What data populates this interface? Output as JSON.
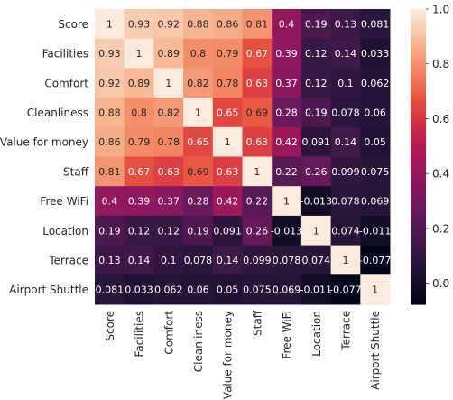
{
  "chart_data": {
    "type": "heatmap",
    "title": "",
    "xlabel": "",
    "ylabel": "",
    "row_labels": [
      "Score",
      "Facilities",
      "Comfort",
      "Cleanliness",
      "Value for money",
      "Staff",
      "Free WiFi",
      "Location",
      "Terrace",
      "Airport Shuttle"
    ],
    "col_labels": [
      "Score",
      "Facilities",
      "Comfort",
      "Cleanliness",
      "Value for money",
      "Staff",
      "Free WiFi",
      "Location",
      "Terrace",
      "Airport Shuttle"
    ],
    "values": [
      [
        1,
        0.93,
        0.92,
        0.88,
        0.86,
        0.81,
        0.4,
        0.19,
        0.13,
        0.081
      ],
      [
        0.93,
        1,
        0.89,
        0.8,
        0.79,
        0.67,
        0.39,
        0.12,
        0.14,
        0.033
      ],
      [
        0.92,
        0.89,
        1,
        0.82,
        0.78,
        0.63,
        0.37,
        0.12,
        0.1,
        0.062
      ],
      [
        0.88,
        0.8,
        0.82,
        1,
        0.65,
        0.69,
        0.28,
        0.19,
        0.078,
        0.06
      ],
      [
        0.86,
        0.79,
        0.78,
        0.65,
        1,
        0.63,
        0.42,
        0.091,
        0.14,
        0.05
      ],
      [
        0.81,
        0.67,
        0.63,
        0.69,
        0.63,
        1,
        0.22,
        0.26,
        0.099,
        0.075
      ],
      [
        0.4,
        0.39,
        0.37,
        0.28,
        0.42,
        0.22,
        1,
        -0.013,
        0.078,
        0.069
      ],
      [
        0.19,
        0.12,
        0.12,
        0.19,
        0.091,
        0.26,
        -0.013,
        1,
        0.074,
        -0.011
      ],
      [
        0.13,
        0.14,
        0.1,
        0.078,
        0.14,
        0.099,
        0.078,
        0.074,
        1,
        -0.077
      ],
      [
        0.081,
        0.033,
        0.062,
        0.06,
        0.05,
        0.075,
        0.069,
        -0.011,
        -0.077,
        1
      ]
    ],
    "annotations": [
      [
        "1",
        "0.93",
        "0.92",
        "0.88",
        "0.86",
        "0.81",
        "0.4",
        "0.19",
        "0.13",
        "0.081"
      ],
      [
        "0.93",
        "1",
        "0.89",
        "0.8",
        "0.79",
        "0.67",
        "0.39",
        "0.12",
        "0.14",
        "0.033"
      ],
      [
        "0.92",
        "0.89",
        "1",
        "0.82",
        "0.78",
        "0.63",
        "0.37",
        "0.12",
        "0.1",
        "0.062"
      ],
      [
        "0.88",
        "0.8",
        "0.82",
        "1",
        "0.65",
        "0.69",
        "0.28",
        "0.19",
        "0.078",
        "0.06"
      ],
      [
        "0.86",
        "0.79",
        "0.78",
        "0.65",
        "1",
        "0.63",
        "0.42",
        "0.091",
        "0.14",
        "0.05"
      ],
      [
        "0.81",
        "0.67",
        "0.63",
        "0.69",
        "0.63",
        "1",
        "0.22",
        "0.26",
        "0.099",
        "0.075"
      ],
      [
        "0.4",
        "0.39",
        "0.37",
        "0.28",
        "0.42",
        "0.22",
        "1",
        "-0.013",
        "0.078",
        "0.069"
      ],
      [
        "0.19",
        "0.12",
        "0.12",
        "0.19",
        "0.091",
        "0.26",
        "-0.013",
        "1",
        "0.074",
        "-0.011"
      ],
      [
        "0.13",
        "0.14",
        "0.1",
        "0.078",
        "0.14",
        "0.099",
        "0.078",
        "0.074",
        "1",
        "-0.077"
      ],
      [
        "0.081",
        "0.033",
        "0.062",
        "0.06",
        "0.05",
        "0.075",
        "0.069",
        "-0.011",
        "-0.077",
        "1"
      ]
    ],
    "colormap": "rocket",
    "vmin": -0.077,
    "vmax": 1,
    "colorbar_ticks": [
      0.0,
      0.2,
      0.4,
      0.6,
      0.8,
      1.0
    ],
    "colorbar_tick_labels": [
      "0.0",
      "0.2",
      "0.4",
      "0.6",
      "0.8",
      "1.0"
    ],
    "grid": false,
    "legend": "colorbar-right"
  }
}
